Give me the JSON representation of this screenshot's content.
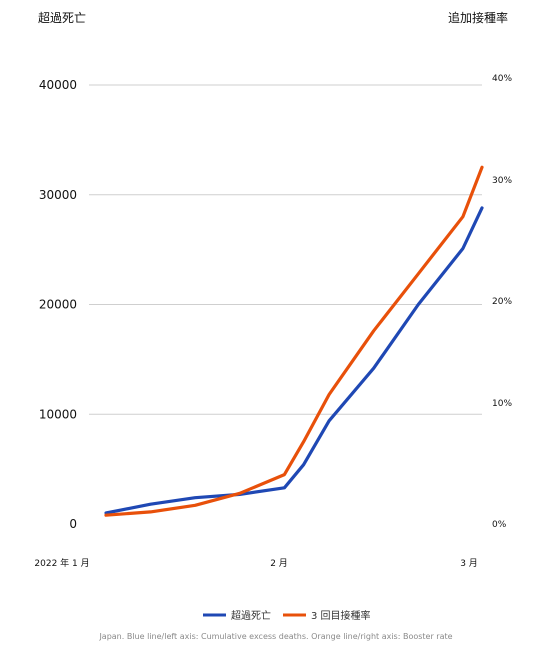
{
  "chart_data": {
    "type": "line",
    "y_left_label": "超過死亡",
    "y_right_label": "追加接種率",
    "y_left_ticks": [
      "40000",
      "30000",
      "20000",
      "10000",
      "0"
    ],
    "y_right_ticks": [
      "40%",
      "30%",
      "20%",
      "10%",
      "0%"
    ],
    "x_tick_labels": [
      "2022 年 1 月",
      "2 月",
      "3 月"
    ],
    "ylim_left": [
      0,
      40000
    ],
    "ylim_right": [
      0,
      40
    ],
    "x_range": [
      "2022-01-01",
      "2022-03-01"
    ],
    "grid": true,
    "legend_position": "bottom",
    "series": [
      {
        "name": "超過死亡",
        "axis": "left",
        "color": "#1f48b4",
        "x": [
          "2022-01-01",
          "2022-01-08",
          "2022-01-15",
          "2022-01-22",
          "2022-01-29",
          "2022-02-01",
          "2022-02-05",
          "2022-02-12",
          "2022-02-19",
          "2022-02-26",
          "2022-03-01"
        ],
        "y": [
          1000,
          1800,
          2400,
          2700,
          3300,
          5400,
          9400,
          14200,
          20000,
          25100,
          28800
        ]
      },
      {
        "name": "3 回目接種率",
        "axis": "right",
        "color": "#e8500a",
        "x": [
          "2022-01-01",
          "2022-01-08",
          "2022-01-15",
          "2022-01-22",
          "2022-01-29",
          "2022-02-01",
          "2022-02-05",
          "2022-02-12",
          "2022-02-19",
          "2022-02-26",
          "2022-03-01"
        ],
        "y": [
          0.8,
          1.1,
          1.7,
          2.8,
          4.5,
          7.5,
          11.8,
          17.6,
          22.8,
          28.0,
          32.5
        ]
      }
    ],
    "caption": "Japan. Blue line/left axis: Cumulative excess deaths. Orange line/right axis: Booster rate"
  }
}
